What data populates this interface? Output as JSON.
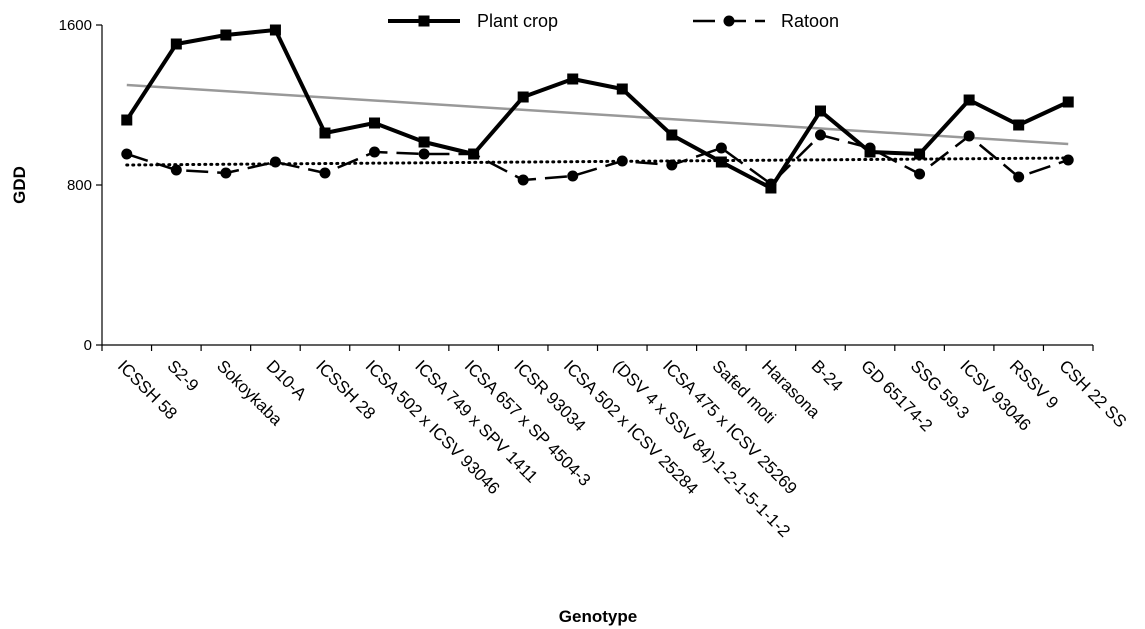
{
  "chart_data": {
    "type": "line",
    "xlabel": "Genotype",
    "ylabel": "GDD",
    "ylim": [
      0,
      1600
    ],
    "yticks": [
      "0",
      "800",
      "1600"
    ],
    "categories": [
      "ICSSH 58",
      "S2-9",
      "Sokoykaba",
      "D10-A",
      "ICSSH 28",
      "ICSA 502 x ICSV 93046",
      "ICSA 749 x SPV 1411",
      "ICSA 657 x SP 4504-3",
      "ICSR 93034",
      "ICSA 502 x ICSV 25284",
      "(DSV 4 x SSV 84)-1-2-1-5-1-1-2",
      "ICSA 475 x ICSV 25269",
      "Safed moti",
      "Harasona",
      "B-24",
      "GD 65174-2",
      "SSG 59-3",
      "ICSV 93046",
      "RSSV 9",
      "CSH 22 SS"
    ],
    "series": [
      {
        "name": "Plant crop",
        "values": [
          1125,
          1505,
          1550,
          1575,
          1060,
          1110,
          1015,
          955,
          1240,
          1330,
          1280,
          1050,
          915,
          785,
          1170,
          965,
          955,
          1225,
          1100,
          1215
        ],
        "style": "solid-square",
        "color": "#000000"
      },
      {
        "name": "Ratoon",
        "values": [
          955,
          875,
          860,
          915,
          860,
          965,
          955,
          955,
          825,
          845,
          920,
          900,
          985,
          805,
          1050,
          985,
          855,
          1045,
          840,
          925
        ],
        "style": "dashed-circle",
        "color": "#000000"
      }
    ],
    "trendlines": [
      {
        "series": "Plant crop",
        "style": "solid",
        "color": "#999999",
        "start": 1300,
        "end": 1005
      },
      {
        "series": "Ratoon",
        "style": "dotted",
        "color": "#000000",
        "start": 900,
        "end": 935
      }
    ],
    "legend_position": "top",
    "grid": false
  }
}
